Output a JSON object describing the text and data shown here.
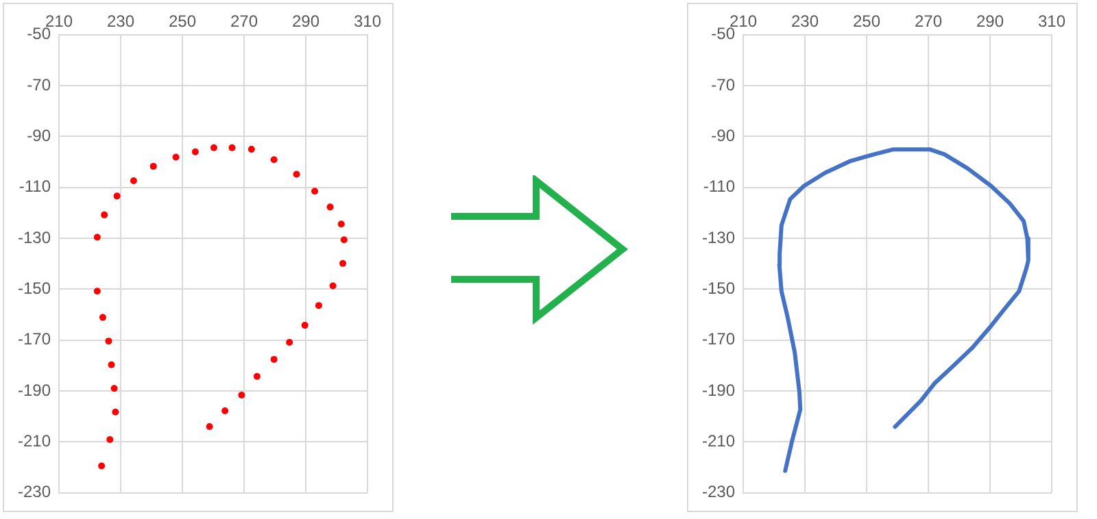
{
  "chart_data": [
    {
      "type": "scatter",
      "color": "#ff0000",
      "marker": "circle",
      "grid": true,
      "xlim": [
        210,
        310
      ],
      "xticks": [
        210,
        230,
        250,
        270,
        290,
        310
      ],
      "ylim": [
        -230,
        -50
      ],
      "yticks": [
        -230,
        -210,
        -190,
        -170,
        -150,
        -130,
        -110,
        -90,
        -70,
        -50
      ],
      "x": [
        223.8,
        226.5,
        228.3,
        227.9,
        227.0,
        226.1,
        224.2,
        222.4,
        222.4,
        224.7,
        228.8,
        234.2,
        240.6,
        247.9,
        254.2,
        260.2,
        266.1,
        272.4,
        279.7,
        287.0,
        292.9,
        297.9,
        301.5,
        302.4,
        302.0,
        298.8,
        294.2,
        289.7,
        284.7,
        279.7,
        274.2,
        269.2,
        263.8,
        258.8
      ],
      "values": [
        -219.5,
        -209.1,
        -198.3,
        -189.0,
        -179.7,
        -170.4,
        -161.1,
        -150.8,
        -129.6,
        -120.8,
        -113.4,
        -107.4,
        -101.7,
        -98.1,
        -96.0,
        -94.4,
        -94.4,
        -95.0,
        -99.1,
        -104.8,
        -111.5,
        -117.7,
        -124.4,
        -130.6,
        -139.9,
        -148.7,
        -156.4,
        -164.2,
        -170.9,
        -177.6,
        -184.3,
        -191.6,
        -197.8,
        -204.0
      ]
    },
    {
      "type": "line",
      "color": "#4472c4",
      "grid": true,
      "xlim": [
        210,
        310
      ],
      "xticks": [
        210,
        230,
        250,
        270,
        290,
        310
      ],
      "ylim": [
        -230,
        -50
      ],
      "yticks": [
        -230,
        -210,
        -190,
        -170,
        -150,
        -130,
        -110,
        -90,
        -70,
        -50
      ],
      "x": [
        223.6,
        225.9,
        228.5,
        228.2,
        226.7,
        224.4,
        222.4,
        221.7,
        221.8,
        222.4,
        225.2,
        229.7,
        236.5,
        244.8,
        252.4,
        258.5,
        270.6,
        275.2,
        282.7,
        290.3,
        296.4,
        300.9,
        302.1,
        302.4,
        301.7,
        299.4,
        294.8,
        290.3,
        284.2,
        278.2,
        272.1,
        267.6,
        259.2
      ],
      "values": [
        -221.4,
        -209.3,
        -197.3,
        -190.4,
        -174.9,
        -161.1,
        -150.8,
        -140.4,
        -136.1,
        -124.9,
        -114.6,
        -109.4,
        -104.3,
        -99.6,
        -97.0,
        -95.1,
        -95.1,
        -97.0,
        -102.5,
        -109.4,
        -116.3,
        -123.2,
        -130.1,
        -138.7,
        -142.1,
        -150.8,
        -157.6,
        -164.5,
        -173.1,
        -180.0,
        -186.9,
        -193.8,
        -204.1
      ]
    }
  ]
}
